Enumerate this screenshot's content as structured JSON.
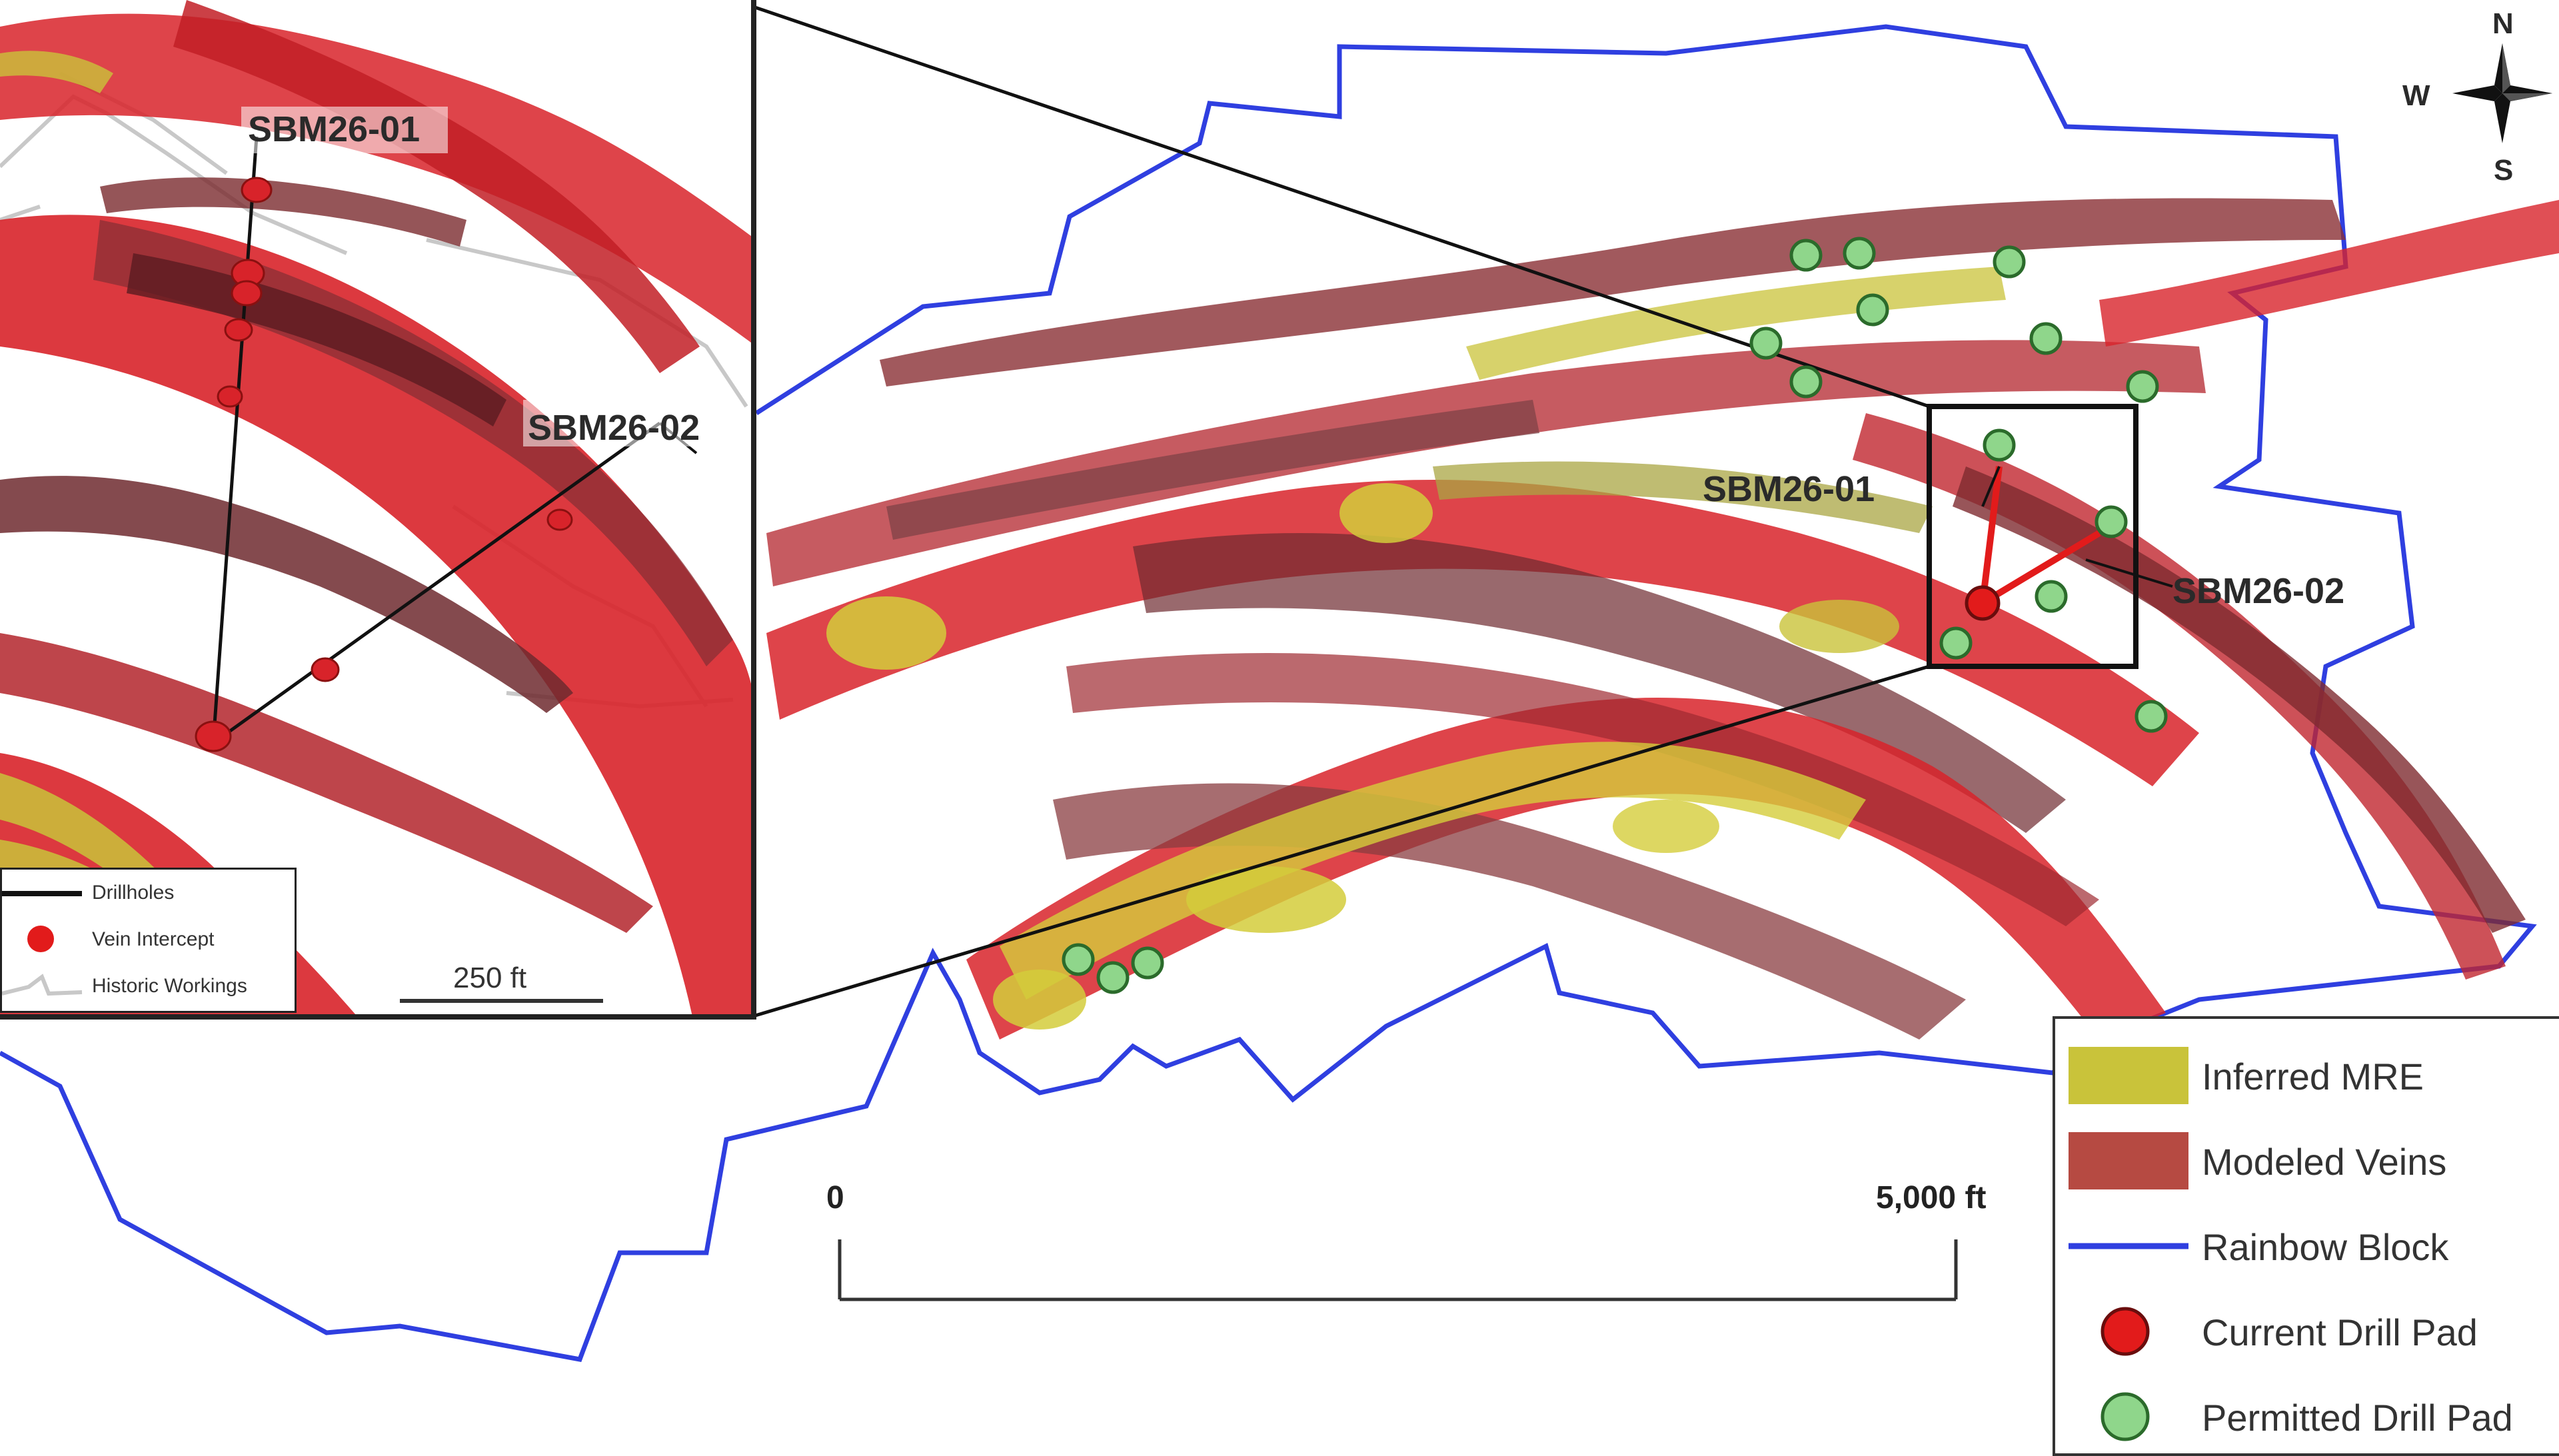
{
  "map": {
    "drillhole_labels": {
      "main_1": "SBM26-01",
      "main_2": "SBM26-02",
      "inset_1": "SBM26-01",
      "inset_2": "SBM26-02"
    },
    "compass": {
      "north": "N",
      "south": "S",
      "west": "W"
    },
    "scale_bar": {
      "start": "0",
      "end": "5,000 ft"
    },
    "inset_scale": "250 ft",
    "colors": {
      "boundary": "#2f3fe0",
      "vein_red": "#d8232a",
      "vein_dark": "#7a2a2e",
      "mre_yellow": "#c9c33a",
      "current_pad": "#e21b1b",
      "permitted_pad": "#8fd68b"
    }
  },
  "legend": {
    "items": [
      {
        "label": "Inferred MRE",
        "symbol": "yellow-rect"
      },
      {
        "label": "Modeled Veins",
        "symbol": "red-rect"
      },
      {
        "label": "Rainbow Block",
        "symbol": "blue-line"
      },
      {
        "label": "Current Drill Pad",
        "symbol": "red-dot"
      },
      {
        "label": "Permitted Drill Pad",
        "symbol": "green-dot"
      }
    ]
  },
  "inset_legend": {
    "items": [
      {
        "label": "Drillholes",
        "symbol": "black-line"
      },
      {
        "label": "Vein Intercept",
        "symbol": "red-dot"
      },
      {
        "label": "Historic Workings",
        "symbol": "grey-line"
      }
    ]
  }
}
